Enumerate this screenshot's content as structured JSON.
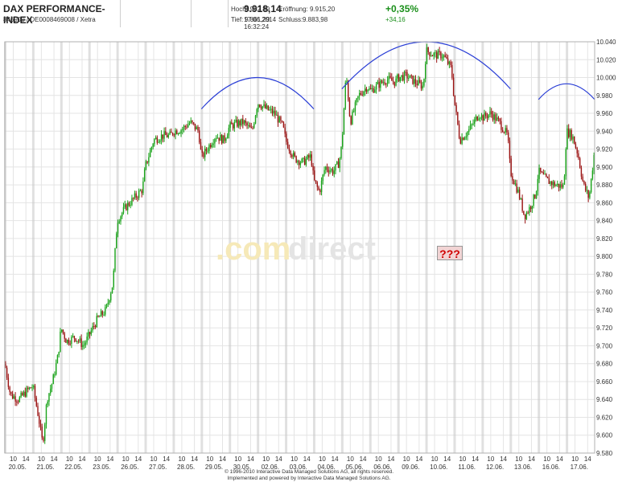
{
  "header": {
    "title": "DAX PERFORMANCE-INDEX",
    "identifier": "846900 / DE0008469008 / Xetra",
    "price": "9.918,14",
    "datetime": "17.06.2014 16:32:24",
    "change_pct": "+0,35%",
    "change_abs": "+34,16",
    "high_label": "Hoch:",
    "high_value": "9.982,89",
    "low_label": "Tief:",
    "low_value": "9.861,29",
    "open_label": "Eröffnung:",
    "open_value": "9.915,20",
    "close_label": "Schluss:",
    "close_value": "9.883,98"
  },
  "watermark": {
    "part1": ".com",
    "part2": "direct"
  },
  "annotation": "???",
  "footer": {
    "line1": "© 1996-2010 Interactive Data Managed Solutions AG, all rights reserved.",
    "line2": "Implemented and powered by Interactive Data Managed Solutions AG."
  },
  "colors": {
    "up": "#1aa31a",
    "down": "#9b1414",
    "arc": "#2b3fd6",
    "grid": "#e4e4e4",
    "session": "#c8c8c8"
  },
  "chart_data": {
    "type": "candlestick",
    "title": "DAX PERFORMANCE-INDEX",
    "ylim": [
      9580,
      10040
    ],
    "y_ticks": [
      "9.580",
      "9.600",
      "9.620",
      "9.640",
      "9.660",
      "9.680",
      "9.700",
      "9.720",
      "9.740",
      "9.760",
      "9.780",
      "9.800",
      "9.820",
      "9.840",
      "9.860",
      "9.880",
      "9.900",
      "9.920",
      "9.940",
      "9.960",
      "9.980",
      "10.000",
      "10.020",
      "10.040"
    ],
    "dates": [
      "20.05.",
      "21.05.",
      "22.05.",
      "23.05.",
      "26.05.",
      "27.05.",
      "28.05.",
      "29.05.",
      "30.05.",
      "02.06.",
      "03.06.",
      "04.06.",
      "05.06.",
      "06.06.",
      "09.06.",
      "10.06.",
      "11.06.",
      "12.06.",
      "13.06.",
      "16.06.",
      "17.06."
    ],
    "intraday_ticks": [
      "10",
      "14"
    ],
    "path": [
      [
        0,
        9680
      ],
      [
        0.2,
        9645
      ],
      [
        0.5,
        9640
      ],
      [
        0.8,
        9650
      ],
      [
        1.0,
        9655
      ],
      [
        1.2,
        9620
      ],
      [
        1.35,
        9590
      ],
      [
        1.5,
        9640
      ],
      [
        1.7,
        9660
      ],
      [
        1.9,
        9690
      ],
      [
        2.0,
        9720
      ],
      [
        2.2,
        9705
      ],
      [
        2.5,
        9710
      ],
      [
        2.8,
        9700
      ],
      [
        3.0,
        9712
      ],
      [
        3.3,
        9730
      ],
      [
        3.6,
        9740
      ],
      [
        3.85,
        9770
      ],
      [
        4.0,
        9840
      ],
      [
        4.3,
        9855
      ],
      [
        4.6,
        9865
      ],
      [
        4.9,
        9875
      ],
      [
        5.0,
        9900
      ],
      [
        5.3,
        9930
      ],
      [
        5.6,
        9935
      ],
      [
        5.9,
        9935
      ],
      [
        6.0,
        9940
      ],
      [
        6.3,
        9942
      ],
      [
        6.6,
        9950
      ],
      [
        6.9,
        9940
      ],
      [
        7.0,
        9910
      ],
      [
        7.2,
        9920
      ],
      [
        7.5,
        9935
      ],
      [
        7.8,
        9930
      ],
      [
        8.0,
        9945
      ],
      [
        8.2,
        9948
      ],
      [
        8.5,
        9950
      ],
      [
        8.8,
        9940
      ],
      [
        9.0,
        9972
      ],
      [
        9.3,
        9965
      ],
      [
        9.6,
        9960
      ],
      [
        9.9,
        9945
      ],
      [
        10.0,
        9930
      ],
      [
        10.3,
        9910
      ],
      [
        10.6,
        9905
      ],
      [
        10.9,
        9912
      ],
      [
        11.0,
        9885
      ],
      [
        11.2,
        9872
      ],
      [
        11.4,
        9900
      ],
      [
        11.7,
        9895
      ],
      [
        11.9,
        9905
      ],
      [
        12.0,
        9925
      ],
      [
        12.15,
        10005
      ],
      [
        12.3,
        9950
      ],
      [
        12.6,
        9980
      ],
      [
        12.9,
        9990
      ],
      [
        13.0,
        9985
      ],
      [
        13.3,
        9992
      ],
      [
        13.6,
        9998
      ],
      [
        13.9,
        9995
      ],
      [
        14.0,
        10000
      ],
      [
        14.3,
        10002
      ],
      [
        14.6,
        9995
      ],
      [
        14.9,
        9990
      ],
      [
        15.0,
        10030
      ],
      [
        15.3,
        10025
      ],
      [
        15.6,
        10025
      ],
      [
        15.9,
        10010
      ],
      [
        16.0,
        9975
      ],
      [
        16.2,
        9930
      ],
      [
        16.5,
        9940
      ],
      [
        16.8,
        9955
      ],
      [
        16.9,
        9960
      ],
      [
        17.0,
        9955
      ],
      [
        17.3,
        9960
      ],
      [
        17.6,
        9950
      ],
      [
        17.9,
        9935
      ],
      [
        18.0,
        9895
      ],
      [
        18.3,
        9870
      ],
      [
        18.5,
        9845
      ],
      [
        18.7,
        9855
      ],
      [
        18.9,
        9870
      ],
      [
        19.0,
        9895
      ],
      [
        19.3,
        9885
      ],
      [
        19.6,
        9880
      ],
      [
        19.9,
        9878
      ],
      [
        20.0,
        9940
      ],
      [
        20.2,
        9935
      ],
      [
        20.4,
        9915
      ],
      [
        20.6,
        9880
      ],
      [
        20.8,
        9865
      ],
      [
        21.0,
        9920
      ]
    ],
    "arcs": [
      {
        "from": 7.0,
        "to": 11.0,
        "peak": 10000
      },
      {
        "from": 12.0,
        "to": 18.0,
        "peak": 10040
      },
      {
        "from": 19.0,
        "to": 21.0,
        "peak": 9993
      }
    ]
  }
}
